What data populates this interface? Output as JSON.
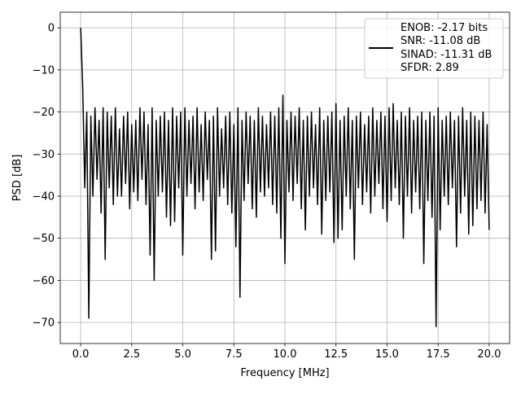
{
  "chart_data": {
    "type": "line",
    "title": "",
    "xlabel": "Frequency [MHz]",
    "ylabel": "PSD [dB]",
    "xlim": [
      -1,
      21
    ],
    "ylim": [
      -75,
      3.7
    ],
    "x_range": [
      0,
      20
    ],
    "xticks": [
      "0.0",
      "2.5",
      "5.0",
      "7.5",
      "10.0",
      "12.5",
      "15.0",
      "17.5",
      "20.0"
    ],
    "yticks": [
      "0",
      "−10",
      "−20",
      "−30",
      "−40",
      "−50",
      "−60",
      "−70"
    ],
    "grid": true,
    "legend_position": "top-right",
    "legend_entries": [
      "ENOB: -2.17 bits",
      "SNR: -11.08 dB",
      "SINAD: -11.31 dB",
      "SFDR: 2.89"
    ],
    "line_color": "#000000",
    "grid_color": "#b0b0b0",
    "series": [
      {
        "values": [
          0,
          -14,
          -38,
          -20,
          -69,
          -21,
          -40,
          -19,
          -36,
          -22,
          -44,
          -19,
          -55,
          -20,
          -38,
          -21,
          -42,
          -19,
          -40,
          -24,
          -40,
          -21,
          -37,
          -20,
          -43,
          -23,
          -39,
          -22,
          -41,
          -19,
          -36,
          -20,
          -42,
          -23,
          -54,
          -19,
          -60,
          -22,
          -40,
          -21,
          -39,
          -20,
          -45,
          -22,
          -47,
          -19,
          -46,
          -21,
          -38,
          -20,
          -54,
          -19,
          -40,
          -22,
          -37,
          -21,
          -43,
          -19,
          -39,
          -23,
          -41,
          -20,
          -36,
          -22,
          -55,
          -21,
          -53,
          -19,
          -40,
          -24,
          -38,
          -21,
          -42,
          -20,
          -44,
          -23,
          -52,
          -19,
          -64,
          -22,
          -41,
          -20,
          -37,
          -21,
          -43,
          -22,
          -45,
          -19,
          -39,
          -21,
          -40,
          -23,
          -38,
          -20,
          -42,
          -21,
          -44,
          -19,
          -50,
          -16,
          -56,
          -22,
          -39,
          -20,
          -41,
          -21,
          -37,
          -19,
          -43,
          -22,
          -48,
          -21,
          -40,
          -20,
          -38,
          -23,
          -42,
          -19,
          -49,
          -22,
          -41,
          -21,
          -39,
          -20,
          -51,
          -18,
          -50,
          -22,
          -48,
          -21,
          -40,
          -19,
          -43,
          -22,
          -55,
          -21,
          -38,
          -20,
          -42,
          -23,
          -39,
          -21,
          -44,
          -19,
          -40,
          -22,
          -37,
          -20,
          -43,
          -21,
          -46,
          -19,
          -41,
          -18,
          -38,
          -22,
          -42,
          -20,
          -50,
          -21,
          -40,
          -19,
          -44,
          -22,
          -39,
          -21,
          -43,
          -20,
          -56,
          -22,
          -41,
          -20,
          -45,
          -21,
          -71,
          -19,
          -48,
          -22,
          -40,
          -21,
          -42,
          -20,
          -38,
          -22,
          -52,
          -21,
          -44,
          -19,
          -40,
          -22,
          -49,
          -20,
          -47,
          -21,
          -43,
          -22,
          -41,
          -20,
          -44,
          -23,
          -48
        ]
      }
    ]
  }
}
